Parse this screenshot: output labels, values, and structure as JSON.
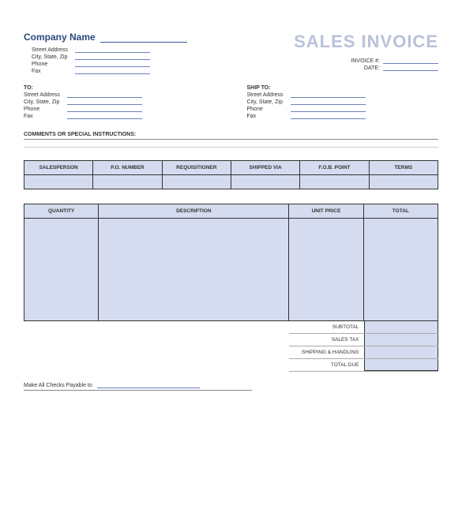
{
  "title": "SALES INVOICE",
  "company_label": "Company Name",
  "company_info": {
    "street": "Street Address",
    "csz": "City, State, Zip",
    "phone": "Phone",
    "fax": "Fax"
  },
  "meta": {
    "invoice_label": "INVOICE #:",
    "date_label": "DATE:"
  },
  "to": {
    "heading": "TO:",
    "street": "Street Address",
    "csz": "City, State, Zip",
    "phone": "Phone",
    "fax": "Fax"
  },
  "ship": {
    "heading": "SHIP TO:",
    "street": "Street Address",
    "csz": "City, State, Zip",
    "phone": "Phone",
    "fax": "Fax"
  },
  "comments_heading": "COMMENTS OR SPECIAL INSTRUCTIONS:",
  "table1_headers": {
    "c1": "SALESPERSON",
    "c2": "P.O. NUMBER",
    "c3": "REQUISITIONER",
    "c4": "SHIPPED VIA",
    "c5": "F.O.B. POINT",
    "c6": "TERMS"
  },
  "table2_headers": {
    "c1": "QUANTITY",
    "c2": "DESCRIPTION",
    "c3": "UNIT PRICE",
    "c4": "TOTAL"
  },
  "totals": {
    "subtotal": "SUBTOTAL",
    "tax": "SALES TAX",
    "shipping": "SHIPPING & HANDLING",
    "due": "TOTAL DUE"
  },
  "payable_label": "Make All Checks Payable to",
  "colors": {
    "header_fill": "#d5dcef",
    "accent": "#3a5a9a",
    "title_gray": "#b8c2d8"
  }
}
